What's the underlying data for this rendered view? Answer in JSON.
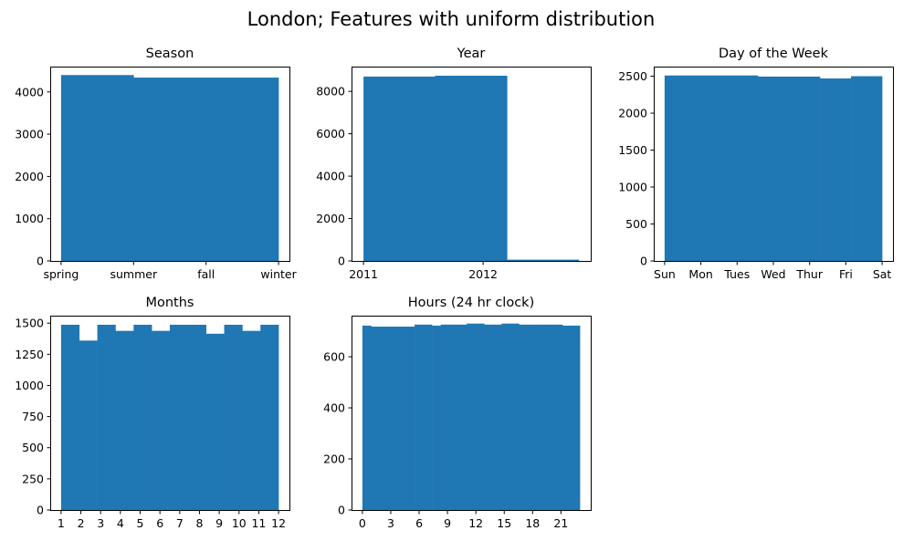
{
  "figure": {
    "title": "London; Features with uniform distribution"
  },
  "chart_data": [
    {
      "type": "bar",
      "title": "Season",
      "bins": [
        [
          1,
          2
        ],
        [
          2,
          3
        ],
        [
          3,
          4
        ]
      ],
      "values": [
        4400,
        4340,
        4340
      ],
      "xlim": [
        0.85,
        4.15
      ],
      "ylim": [
        0,
        4600
      ],
      "xticks": [
        1,
        2,
        3,
        4
      ],
      "xtick_labels": [
        "spring",
        "summer",
        "fall",
        "winter"
      ],
      "yticks": [
        0,
        1000,
        2000,
        3000,
        4000
      ],
      "ytick_labels": [
        "0",
        "1000",
        "2000",
        "3000",
        "4000"
      ]
    },
    {
      "type": "bar",
      "title": "Year",
      "bins": [
        [
          2011,
          2011.6
        ],
        [
          2011.6,
          2012.2
        ],
        [
          2012.2,
          2012.8
        ]
      ],
      "values": [
        8700,
        8740,
        60
      ],
      "xlim": [
        2010.9,
        2012.9
      ],
      "ylim": [
        0,
        9170
      ],
      "xticks": [
        2011,
        2012
      ],
      "xtick_labels": [
        "2011",
        "2012"
      ],
      "yticks": [
        0,
        2000,
        4000,
        6000,
        8000
      ],
      "ytick_labels": [
        "0",
        "2000",
        "4000",
        "6000",
        "8000"
      ]
    },
    {
      "type": "bar",
      "title": "Day of the Week",
      "bins": [
        [
          0,
          0.857
        ],
        [
          0.857,
          1.714
        ],
        [
          1.714,
          2.571
        ],
        [
          2.571,
          3.429
        ],
        [
          3.429,
          4.286
        ],
        [
          4.286,
          5.143
        ],
        [
          5.143,
          6
        ]
      ],
      "values": [
        2510,
        2510,
        2510,
        2495,
        2495,
        2470,
        2500
      ],
      "xlim": [
        -0.3,
        6.3
      ],
      "ylim": [
        0,
        2630
      ],
      "xticks": [
        0,
        1,
        2,
        3,
        4,
        5,
        6
      ],
      "xtick_labels": [
        "Sun",
        "Mon",
        "Tues",
        "Wed",
        "Thur",
        "Fri",
        "Sat"
      ],
      "yticks": [
        0,
        500,
        1000,
        1500,
        2000,
        2500
      ],
      "ytick_labels": [
        "0",
        "500",
        "1000",
        "1500",
        "2000",
        "2500"
      ]
    },
    {
      "type": "bar",
      "title": "Months",
      "bins": [
        [
          1,
          1.917
        ],
        [
          1.917,
          2.833
        ],
        [
          2.833,
          3.75
        ],
        [
          3.75,
          4.667
        ],
        [
          4.667,
          5.583
        ],
        [
          5.583,
          6.5
        ],
        [
          6.5,
          7.417
        ],
        [
          7.417,
          8.333
        ],
        [
          8.333,
          9.25
        ],
        [
          9.25,
          10.167
        ],
        [
          10.167,
          11.083
        ],
        [
          11.083,
          12
        ]
      ],
      "values": [
        1487,
        1360,
        1487,
        1438,
        1487,
        1438,
        1487,
        1487,
        1415,
        1487,
        1438,
        1487
      ],
      "xlim": [
        0.45,
        12.55
      ],
      "ylim": [
        0,
        1560
      ],
      "xticks": [
        1,
        2,
        3,
        4,
        5,
        6,
        7,
        8,
        9,
        10,
        11,
        12
      ],
      "xtick_labels": [
        "1",
        "2",
        "3",
        "4",
        "5",
        "6",
        "7",
        "8",
        "9",
        "10",
        "11",
        "12"
      ],
      "yticks": [
        0,
        250,
        500,
        750,
        1000,
        1250,
        1500
      ],
      "ytick_labels": [
        "0",
        "250",
        "500",
        "750",
        "1000",
        "1250",
        "1500"
      ]
    },
    {
      "type": "bar",
      "title": "Hours (24 hr clock)",
      "bins": [
        [
          0,
          0.92
        ],
        [
          0.92,
          1.84
        ],
        [
          1.84,
          2.76
        ],
        [
          2.76,
          3.68
        ],
        [
          3.68,
          4.6
        ],
        [
          4.6,
          5.52
        ],
        [
          5.52,
          6.44
        ],
        [
          6.44,
          7.36
        ],
        [
          7.36,
          8.28
        ],
        [
          8.28,
          9.2
        ],
        [
          9.2,
          10.12
        ],
        [
          10.12,
          11.04
        ],
        [
          11.04,
          11.96
        ],
        [
          11.96,
          12.88
        ],
        [
          12.88,
          13.8
        ],
        [
          13.8,
          14.72
        ],
        [
          14.72,
          15.64
        ],
        [
          15.64,
          16.56
        ],
        [
          16.56,
          17.48
        ],
        [
          17.48,
          18.4
        ],
        [
          18.4,
          19.32
        ],
        [
          19.32,
          20.24
        ],
        [
          20.24,
          21.16
        ],
        [
          21.16,
          22.08
        ],
        [
          22.08,
          23
        ]
      ],
      "values": [
        722,
        718,
        718,
        718,
        718,
        718,
        726,
        726,
        722,
        726,
        726,
        726,
        730,
        730,
        726,
        726,
        730,
        730,
        726,
        726,
        726,
        726,
        726,
        722,
        722
      ],
      "xlim": [
        -1.15,
        24.15
      ],
      "ylim": [
        0,
        761
      ],
      "xticks": [
        0,
        3,
        6,
        9,
        12,
        15,
        18,
        21
      ],
      "xtick_labels": [
        "0",
        "3",
        "6",
        "9",
        "12",
        "15",
        "18",
        "21"
      ],
      "yticks": [
        0,
        200,
        400,
        600
      ],
      "ytick_labels": [
        "0",
        "200",
        "400",
        "600"
      ]
    }
  ]
}
